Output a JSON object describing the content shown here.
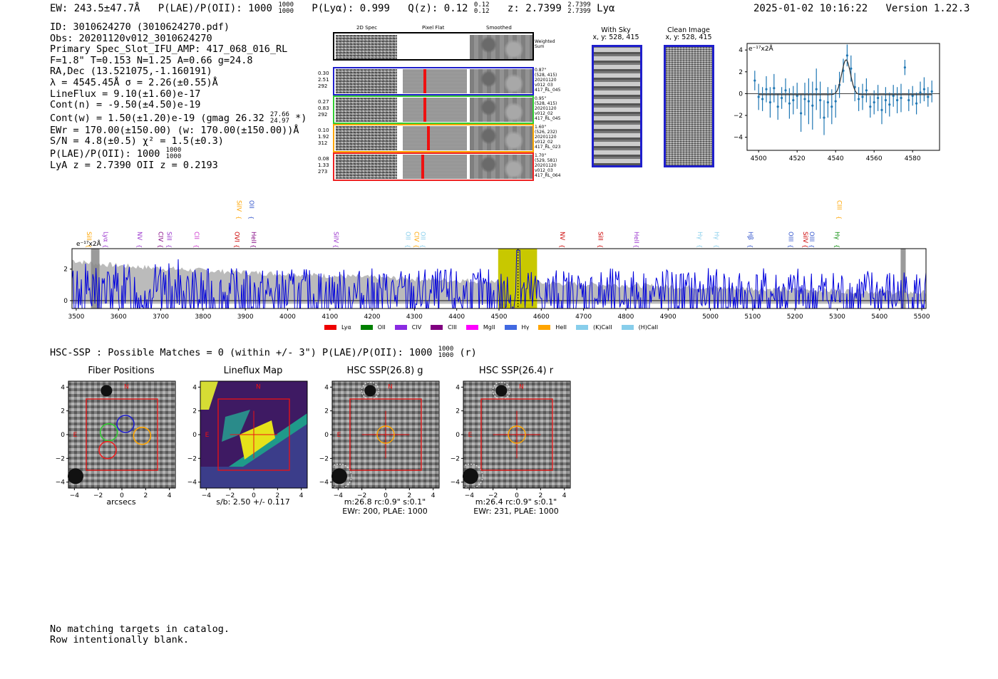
{
  "header": {
    "ew": "EW: 243.5±47.7Å",
    "plae_label": "P(LAE)/P(OII): 1000",
    "plae_hi": "1000",
    "plae_lo": "1000",
    "plya": "P(Lyα): 0.999",
    "qz_label": "Q(z): 0.12",
    "qz_hi": "0.12",
    "qz_lo": "0.12",
    "z_label": "z: 2.7399",
    "z_hi": "2.7399",
    "z_lo": "2.7399",
    "z_line": "Lyα",
    "datetime": "2025-01-02 10:16:22",
    "version": "Version 1.22.3"
  },
  "info": {
    "id": "ID: 3010624270 (3010624270.pdf)",
    "obs": "Obs: 20201120v012_3010624270",
    "primary": "Primary Spec_Slot_IFU_AMP: 417_068_016_RL",
    "seeing": "F=1.8\"  T=0.153  N=1.25  A=0.66  g=24.8",
    "radec": "RA,Dec (13.521075,-1.160191)",
    "lambda": "λ = 4545.45Å   σ = 2.26(±0.55)Å",
    "lineflux": "LineFlux = 9.10(±1.60)e-17",
    "contn": "Cont(n) = -9.50(±4.50)e-19",
    "contw": "Cont(w) = 1.50(±1.20)e-19 (gmag 26.32",
    "contw_hi": "27.66",
    "contw_lo": "24.97",
    "contw_end": "*)",
    "ewr": "EWr = 170.00(±150.00) (w: 170.00(±150.00))Å",
    "sn": "S/N = 4.8(±0.5)  χ² = 1.5(±0.3)",
    "plae": "P(LAE)/P(OII): 1000",
    "plae_hi": "1000",
    "plae_lo": "1000",
    "lya": "LyA z = 2.7390  OII z = 0.2193"
  },
  "cutouts": {
    "col_labels": [
      "2D Spec",
      "Pixel Flat",
      "Smoothed"
    ],
    "weighted_sum": "Weighted Sum",
    "rows": [
      {
        "left": [
          "0.30",
          "2.51",
          "292"
        ],
        "right": [
          "0.87\"",
          "(528, 415)",
          "20201120",
          "v012_03",
          "417_RL_045"
        ],
        "color": "#1f1fcc"
      },
      {
        "left": [
          "0.27",
          "0.83",
          "292"
        ],
        "right": [
          "0.95\"",
          "(528, 415)",
          "20201120",
          "v012_02",
          "417_RL_045"
        ],
        "color": "#33cc33"
      },
      {
        "left": [
          "0.10",
          "1.92",
          "312"
        ],
        "right": [
          "1.60\"",
          "(526, 232)",
          "20201120",
          "v012_02",
          "417_RL_023"
        ],
        "color": "#ffa500"
      },
      {
        "left": [
          "0.08",
          "1.33",
          "273"
        ],
        "right": [
          "1.70\"",
          "(529, 581)",
          "20201120",
          "v012_03",
          "417_RL_064"
        ],
        "color": "#ee2222"
      }
    ],
    "with_sky_title": "With Sky",
    "with_sky_xy": "x, y: 528, 415",
    "clean_title": "Clean Image",
    "clean_xy": "x, y: 528, 415"
  },
  "zoom_chart": {
    "unit_label": "e⁻¹⁷x2Å",
    "colors": {
      "points": "#1f77b4",
      "fit": "#333333"
    }
  },
  "spectrum": {
    "unit_label": "e⁻¹⁷x2Å",
    "line_markers": [
      {
        "label": "SiII",
        "wave": 3520,
        "color": "#ffa500",
        "row": "low"
      },
      {
        "label": "Lyα",
        "wave": 3560,
        "color": "#9933cc",
        "row": "low"
      },
      {
        "label": "NV",
        "wave": 3640,
        "color": "#9933cc",
        "row": "low"
      },
      {
        "label": "CIV",
        "wave": 3690,
        "color": "#800080",
        "row": "low"
      },
      {
        "label": "SiII",
        "wave": 3710,
        "color": "#9933cc",
        "row": "low"
      },
      {
        "label": "CII",
        "wave": 3775,
        "color": "#cc33cc",
        "row": "low"
      },
      {
        "label": "SiIV",
        "wave": 3875,
        "color": "#ffa500",
        "row": "high"
      },
      {
        "label": "OII",
        "wave": 3905,
        "color": "#3355cc",
        "row": "high"
      },
      {
        "label": "OVI",
        "wave": 3870,
        "color": "#cc0000",
        "row": "low"
      },
      {
        "label": "HeII",
        "wave": 3910,
        "color": "#800080",
        "row": "low"
      },
      {
        "label": "SiIV",
        "wave": 4105,
        "color": "#9933cc",
        "row": "low"
      },
      {
        "label": "OII",
        "wave": 4275,
        "color": "#87ceeb",
        "row": "low"
      },
      {
        "label": "CIV",
        "wave": 4295,
        "color": "#ffa500",
        "row": "low"
      },
      {
        "label": "OII",
        "wave": 4310,
        "color": "#87ceeb",
        "row": "low"
      },
      {
        "label": "NV",
        "wave": 4640,
        "color": "#cc0000",
        "row": "low"
      },
      {
        "label": "SiII",
        "wave": 4730,
        "color": "#cc0000",
        "row": "low"
      },
      {
        "label": "HeII",
        "wave": 4815,
        "color": "#9933cc",
        "row": "low"
      },
      {
        "label": "Hγ",
        "wave": 4965,
        "color": "#87ceeb",
        "row": "low"
      },
      {
        "label": "Hγ",
        "wave": 5005,
        "color": "#87ceeb",
        "row": "low"
      },
      {
        "label": "Hβ",
        "wave": 5085,
        "color": "#3355cc",
        "row": "low"
      },
      {
        "label": "OIII",
        "wave": 5180,
        "color": "#3355cc",
        "row": "low"
      },
      {
        "label": "SiIV",
        "wave": 5215,
        "color": "#cc0000",
        "row": "low"
      },
      {
        "label": "OIII",
        "wave": 5230,
        "color": "#3355cc",
        "row": "low"
      },
      {
        "label": "CIII",
        "wave": 5295,
        "color": "#ffa500",
        "row": "high"
      },
      {
        "label": "Hγ",
        "wave": 5290,
        "color": "#008800",
        "row": "low"
      }
    ],
    "legend": [
      {
        "label": "Lyα",
        "color": "#ee0000"
      },
      {
        "label": "OII",
        "color": "#008000"
      },
      {
        "label": "CIV",
        "color": "#8a2be2"
      },
      {
        "label": "CIII",
        "color": "#800080"
      },
      {
        "label": "MgII",
        "color": "#ff00ff"
      },
      {
        "label": "Hγ",
        "color": "#4169e1"
      },
      {
        "label": "HeII",
        "color": "#ffa500"
      },
      {
        "label": "(K)CaII",
        "color": "#87ceeb"
      },
      {
        "label": "(H)CaII",
        "color": "#87ceeb"
      }
    ]
  },
  "hsc": {
    "summary": "HSC-SSP : Possible Matches = 0 (within +/- 3\")  P(LAE)/P(OII): 1000",
    "summary_hi": "1000",
    "summary_lo": "1000",
    "summary_band": "(r)",
    "panels": [
      {
        "title": "Fiber Positions",
        "cap1": "arcsecs",
        "cap2": "",
        "cap3": ""
      },
      {
        "title": "Lineflux Map",
        "cap1": "s/b: 2.50 +/- 0.117",
        "cap2": "",
        "cap3": ""
      },
      {
        "title": "HSC SSP(26.8) g",
        "cap1": "m:26.8 rc:0.9\"  s:0.1\"",
        "cap2": "EWr: 200, PLAE: 1000",
        "cap3": ""
      },
      {
        "title": "HSC SSP(26.4) r",
        "cap1": "m:26.4 rc:0.9\"  s:0.1\"",
        "cap2": "EWr: 231, PLAE: 1000",
        "cap3": ""
      }
    ],
    "ticks": [
      "4",
      "2",
      "0",
      "−2",
      "−4"
    ],
    "xticks": [
      "−4",
      "−2",
      "0",
      "2",
      "4"
    ],
    "compass_n": "N",
    "compass_e": "E"
  },
  "footer": {
    "line1": "No matching targets in catalog.",
    "line2": "Row intentionally blank."
  },
  "chart_data": [
    {
      "type": "scatter",
      "title": "",
      "xlabel": "",
      "ylabel": "e-17x2Å",
      "xlim": [
        4494,
        4594
      ],
      "ylim": [
        -5.2,
        4.6
      ],
      "xticks": [
        4500,
        4520,
        4540,
        4560,
        4580
      ],
      "yticks": [
        4,
        2,
        0,
        -2,
        -4
      ],
      "x": [
        4498,
        4500,
        4502,
        4504,
        4506,
        4508,
        4510,
        4512,
        4514,
        4516,
        4518,
        4520,
        4522,
        4524,
        4526,
        4528,
        4530,
        4532,
        4534,
        4536,
        4538,
        4540,
        4542,
        4544,
        4546,
        4548,
        4550,
        4552,
        4554,
        4556,
        4558,
        4560,
        4562,
        4564,
        4566,
        4568,
        4570,
        4572,
        4574,
        4576,
        4578,
        4580,
        4582,
        4584,
        4586,
        4588,
        4590
      ],
      "y": [
        1.2,
        -0.3,
        -0.5,
        0.4,
        -0.8,
        0.5,
        -1.2,
        -0.4,
        0.3,
        -0.9,
        -0.6,
        -0.2,
        -1.8,
        -0.5,
        -0.7,
        -1.1,
        0.4,
        -0.6,
        -2.2,
        -0.8,
        -1.2,
        -0.7,
        0.8,
        2.1,
        3.5,
        2.3,
        0.6,
        -0.5,
        -0.3,
        0.3,
        -1.2,
        -0.8,
        -0.4,
        -1.5,
        -0.6,
        -1.0,
        -0.2,
        -0.6,
        -0.4,
        2.4,
        -0.6,
        -0.2,
        -0.9,
        0.1,
        0.4,
        -0.3,
        0.2
      ],
      "yerr": [
        0.9,
        1.2,
        1.1,
        1.2,
        1.4,
        1.3,
        1.2,
        1.0,
        1.1,
        1.4,
        1.3,
        1.2,
        1.7,
        1.5,
        2.1,
        2.2,
        1.9,
        1.7,
        1.6,
        1.4,
        1.6,
        1.5,
        1.2,
        1.1,
        1.0,
        1.2,
        1.3,
        1.1,
        1.2,
        1.1,
        1.0,
        1.1,
        1.2,
        1.3,
        1.2,
        1.1,
        1.0,
        1.2,
        1.3,
        0.7,
        1.0,
        0.9,
        1.0,
        1.0,
        1.1,
        0.9,
        1.0
      ],
      "fit": {
        "center": 4545.45,
        "sigma": 2.26,
        "amplitude": 3.2
      }
    },
    {
      "type": "line",
      "title": "",
      "xlabel": "",
      "ylabel": "e-17x2Å",
      "xlim": [
        3490,
        5510
      ],
      "ylim": [
        -0.5,
        3.3
      ],
      "xticks": [
        3500,
        3600,
        3700,
        3800,
        3900,
        4000,
        4100,
        4200,
        4300,
        4400,
        4500,
        4600,
        4700,
        4800,
        4900,
        5000,
        5100,
        5200,
        5300,
        5400,
        5500
      ],
      "yticks": [
        2,
        0
      ],
      "series": [
        {
          "name": "error",
          "color": "#bbbbbb",
          "seed": 7,
          "level_start": 2.6,
          "level_end": 0.5
        },
        {
          "name": "flux",
          "color": "#0000dd",
          "seed": 13,
          "points": 820,
          "amplitude": 1.6
        }
      ],
      "highlight": {
        "range": [
          4498,
          4590
        ],
        "center": 4545,
        "color": "#c8c800"
      },
      "masks": [
        [
          3535,
          3555
        ],
        [
          5450,
          5462
        ]
      ]
    }
  ]
}
